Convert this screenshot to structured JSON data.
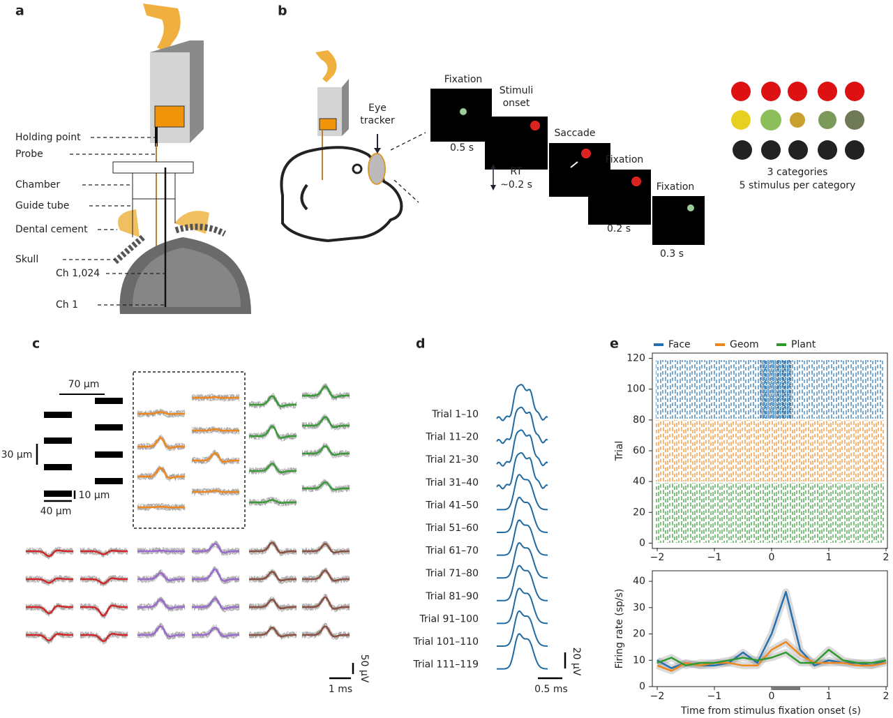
{
  "panel_labels": [
    "a",
    "b",
    "c",
    "d",
    "e"
  ],
  "panel_a": {
    "labels": [
      "Holding point",
      "Probe",
      "Chamber",
      "Guide tube",
      "Dental cement",
      "Skull",
      "Ch 1,024",
      "Ch 1"
    ]
  },
  "panel_b": {
    "eye_tracker": [
      "Eye",
      "tracker"
    ],
    "steps": [
      [
        "Fixation"
      ],
      [
        "Stimuli",
        "onset"
      ],
      [
        "Saccade"
      ],
      [
        "Fixation"
      ],
      [
        "Fixation"
      ]
    ],
    "durations": [
      "0.5 s",
      "0.2 s",
      "0.3 s"
    ],
    "rt": [
      "RT",
      "~0.2 s"
    ],
    "stimulus_notes": [
      "3 categories",
      "5 stimulus per category"
    ]
  },
  "panel_c": {
    "scale_labels": [
      "70 μm",
      "30 μm",
      "10 μm",
      "40 μm",
      "50 μV",
      "1 ms"
    ]
  },
  "panel_d": {
    "trials": [
      "Trial 1–10",
      "Trial 11–20",
      "Trial 21–30",
      "Trial 31–40",
      "Trial 41–50",
      "Trial 51–60",
      "Trial 61–70",
      "Trial 71–80",
      "Trial 81–90",
      "Trial 91–100",
      "Trial 101–110",
      "Trial 111–119"
    ],
    "scale_y": "20 μV",
    "scale_x": "0.5 ms"
  },
  "chart_data": [
    {
      "type": "raster",
      "ylabel": "Trial",
      "ylim": [
        -3,
        123
      ],
      "yticks": [
        0,
        20,
        40,
        60,
        80,
        100,
        120
      ],
      "xlim": [
        -2,
        2
      ],
      "xticks": [
        {
          "value": -2,
          "label": "−2"
        },
        {
          "value": -1,
          "label": "−1"
        },
        0,
        1,
        2
      ]
    },
    {
      "type": "line",
      "ylabel": "Firing rate (sp/s)",
      "xlabel": "Time from stimulus fixation onset (s)",
      "xlim": [
        -2,
        2
      ],
      "xticks": [
        {
          "value": -2,
          "label": "−2"
        },
        {
          "value": -1,
          "label": "−1"
        },
        0,
        1,
        2
      ],
      "ylim": [
        0,
        44
      ],
      "yticks": [
        0,
        10,
        20,
        30,
        40
      ],
      "x": [
        -2,
        -1.75,
        -1.5,
        -1.25,
        -1,
        -0.75,
        -0.5,
        -0.25,
        0,
        0.25,
        0.5,
        0.75,
        1,
        1.25,
        1.5,
        1.75,
        2
      ],
      "series": [
        {
          "name": "Face",
          "color": "#2470b0",
          "values": [
            10,
            7,
            9,
            8,
            8,
            9,
            13,
            9,
            20,
            36,
            14,
            8,
            10,
            9,
            9,
            8,
            10
          ]
        },
        {
          "name": "Geom",
          "color": "#f0871e",
          "values": [
            8,
            6,
            9,
            8,
            9,
            9,
            8,
            8,
            14,
            17,
            12,
            9,
            9,
            9,
            8,
            8,
            9
          ]
        },
        {
          "name": "Plant",
          "color": "#2e9a2e",
          "values": [
            9,
            11,
            8,
            9,
            9,
            10,
            11,
            10,
            11,
            13,
            9,
            9,
            14,
            10,
            9,
            9,
            10
          ]
        }
      ]
    }
  ]
}
